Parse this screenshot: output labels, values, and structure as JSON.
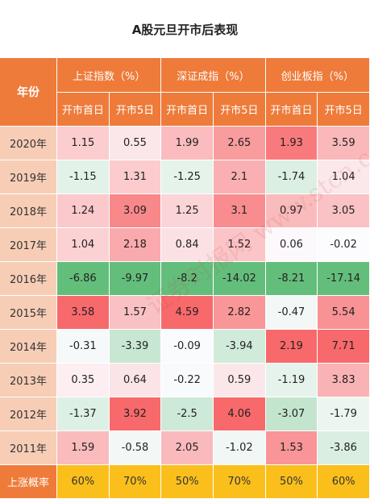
{
  "title": "A股元旦开市后表现",
  "header": {
    "year_label": "年份",
    "indices": [
      "上证指数（%）",
      "深证成指（%）",
      "创业板指（%）"
    ],
    "sub_labels": [
      "开市首日",
      "开市5日"
    ]
  },
  "rows": [
    {
      "year": "2020年",
      "values": [
        "1.15",
        "0.55",
        "1.99",
        "2.65",
        "1.93",
        "3.59"
      ]
    },
    {
      "year": "2019年",
      "values": [
        "-1.15",
        "1.31",
        "-1.25",
        "2.1",
        "-1.74",
        "1.04"
      ]
    },
    {
      "year": "2018年",
      "values": [
        "1.24",
        "3.09",
        "1.25",
        "3.1",
        "0.97",
        "3.05"
      ]
    },
    {
      "year": "2017年",
      "values": [
        "1.04",
        "2.18",
        "0.84",
        "1.52",
        "0.06",
        "-0.02"
      ]
    },
    {
      "year": "2016年",
      "values": [
        "-6.86",
        "-9.97",
        "-8.2",
        "-14.02",
        "-8.21",
        "-17.14"
      ]
    },
    {
      "year": "2015年",
      "values": [
        "3.58",
        "1.57",
        "4.59",
        "2.82",
        "-0.47",
        "5.54"
      ]
    },
    {
      "year": "2014年",
      "values": [
        "-0.31",
        "-3.39",
        "-0.09",
        "-3.94",
        "2.19",
        "7.71"
      ]
    },
    {
      "year": "2013年",
      "values": [
        "0.35",
        "0.64",
        "-0.22",
        "0.59",
        "-1.19",
        "3.83"
      ]
    },
    {
      "year": "2012年",
      "values": [
        "-1.37",
        "3.92",
        "-2.5",
        "4.06",
        "-3.07",
        "-1.79"
      ]
    },
    {
      "year": "2011年",
      "values": [
        "1.59",
        "-0.58",
        "2.05",
        "-1.02",
        "1.53",
        "-3.86"
      ]
    }
  ],
  "footer": {
    "label": "上涨概率",
    "values": [
      "60%",
      "70%",
      "50%",
      "70%",
      "50%",
      "60%"
    ]
  },
  "watermark": "证券时报网 www.stcn.com",
  "colors": {
    "header_orange": "#ee7b3a",
    "year_cell": "#f7cdb6",
    "footer_gold": "#fbbf1c",
    "positive": "#f8696b",
    "negative": "#63be7b"
  }
}
